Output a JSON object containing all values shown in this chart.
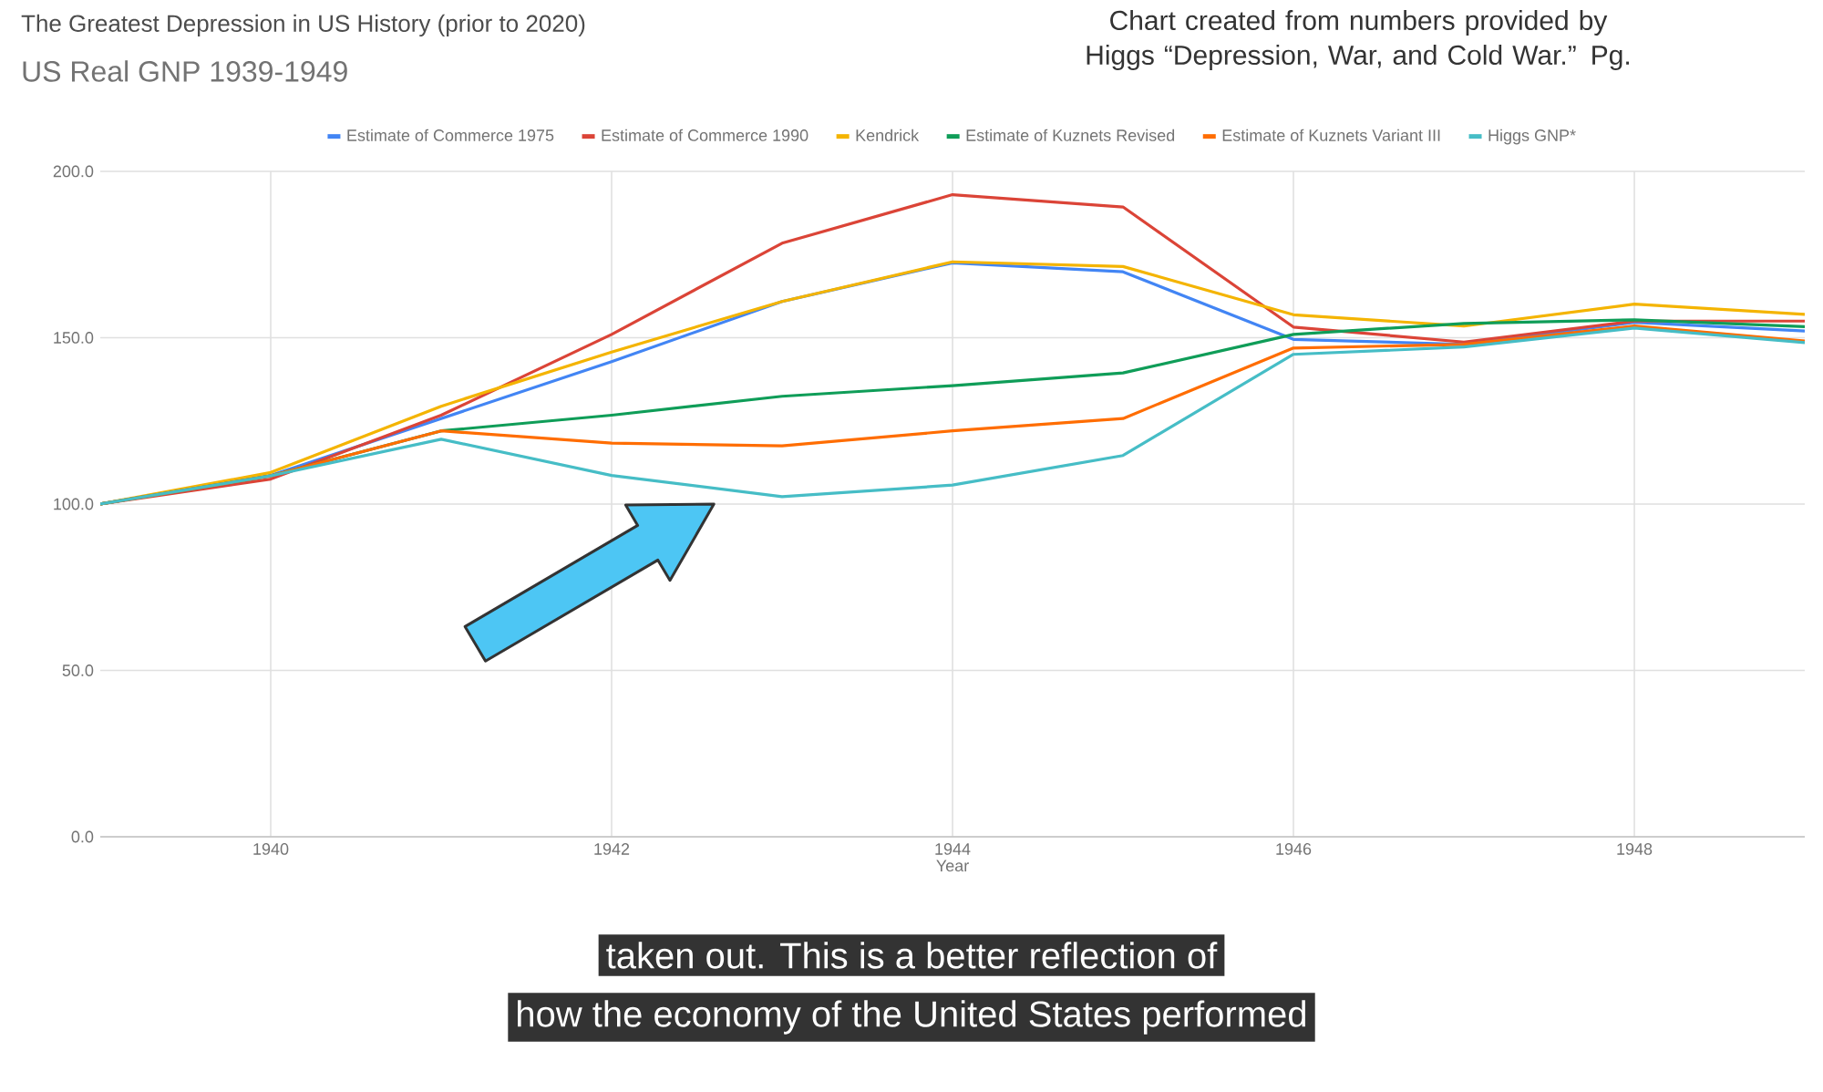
{
  "chart_data": {
    "type": "line",
    "title": "US Real GNP 1939-1949",
    "subtitle": "Chart created from numbers provided by Higgs “Depression, War, and Cold War.” Pg.",
    "xlabel": "Year",
    "annotations": [
      "The Greatest Depression in US History (prior to 2020)",
      "taken out. This is a better reflection of",
      "how the economy of the United States performed"
    ],
    "x": [
      1939,
      1940,
      1941,
      1942,
      1943,
      1944,
      1945,
      1946,
      1947,
      1948,
      1949
    ],
    "series": [
      {
        "name": "Estimate of Commerce 1975",
        "color": "#4285f4",
        "values": [
          100,
          108.6,
          125.7,
          142.8,
          160.9,
          172.5,
          169.8,
          149.5,
          148,
          154.6,
          152
        ]
      },
      {
        "name": "Estimate of Commerce 1990",
        "color": "#db4437",
        "values": [
          100,
          107.5,
          126.7,
          151,
          178.4,
          193,
          189.3,
          153.2,
          148.7,
          155,
          155
        ]
      },
      {
        "name": "Kendrick",
        "color": "#f4b400",
        "values": [
          100,
          109.5,
          129.4,
          145.7,
          160.9,
          172.8,
          171.4,
          156.9,
          153.5,
          160.1,
          157
        ]
      },
      {
        "name": "Estimate of Kuznets Revised",
        "color": "#0f9d58",
        "values": [
          100,
          108.5,
          122,
          126.7,
          132.4,
          135.6,
          139.4,
          151,
          154.3,
          155.4,
          153.3
        ]
      },
      {
        "name": "Estimate of Kuznets Variant III",
        "color": "#ff6d01",
        "values": [
          100,
          108.5,
          122,
          118.3,
          117.5,
          122,
          125.7,
          146.9,
          148,
          153.5,
          149
        ]
      },
      {
        "name": "Higgs GNP*",
        "color": "#46bdc6",
        "values": [
          100,
          108.5,
          119.5,
          108.6,
          102.2,
          105.7,
          114.6,
          145,
          147.2,
          152.9,
          148.5
        ]
      }
    ],
    "xlim": [
      1939,
      1949
    ],
    "xticks": [
      1940,
      1942,
      1944,
      1946,
      1948
    ],
    "ylim": [
      0,
      200
    ],
    "yticks": [
      {
        "value": 0,
        "label": "0.0"
      },
      {
        "value": 50,
        "label": "50.0"
      },
      {
        "value": 100,
        "label": "100.0"
      },
      {
        "value": 150,
        "label": "150.0"
      },
      {
        "value": 200,
        "label": "200.0"
      }
    ],
    "grid": true,
    "legend": "top"
  }
}
